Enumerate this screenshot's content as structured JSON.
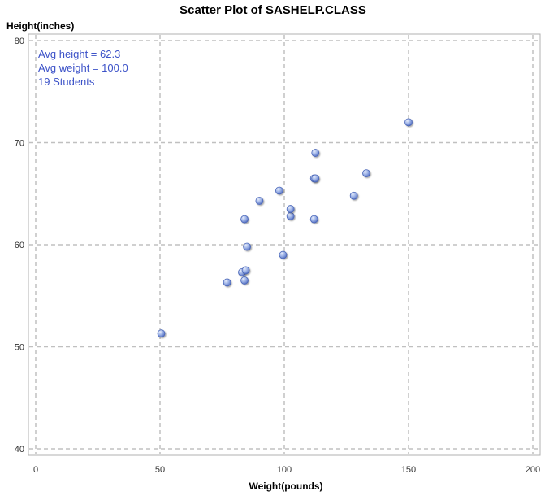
{
  "chart_data": {
    "type": "scatter",
    "title": "Scatter Plot of SASHELP.CLASS",
    "xlabel": "Weight(pounds)",
    "ylabel": "Height(inches)",
    "xlim": [
      0,
      200
    ],
    "ylim": [
      40,
      80
    ],
    "xticks": [
      "0",
      "50",
      "100",
      "150",
      "200"
    ],
    "yticks": [
      "40",
      "50",
      "60",
      "70",
      "80"
    ],
    "grid": true,
    "annotations": [
      "Avg height = 62.3",
      "Avg weight = 100.0",
      "19 Students"
    ],
    "series": [
      {
        "points": [
          {
            "x": 50.5,
            "y": 51.3
          },
          {
            "x": 77.0,
            "y": 56.3
          },
          {
            "x": 83.0,
            "y": 57.3
          },
          {
            "x": 84.0,
            "y": 56.5
          },
          {
            "x": 84.5,
            "y": 57.5
          },
          {
            "x": 84.0,
            "y": 62.5
          },
          {
            "x": 85.0,
            "y": 59.8
          },
          {
            "x": 90.0,
            "y": 64.3
          },
          {
            "x": 98.0,
            "y": 65.3
          },
          {
            "x": 99.5,
            "y": 59.0
          },
          {
            "x": 102.5,
            "y": 62.8
          },
          {
            "x": 102.5,
            "y": 63.5
          },
          {
            "x": 112.0,
            "y": 62.5
          },
          {
            "x": 112.0,
            "y": 66.5
          },
          {
            "x": 112.5,
            "y": 66.5
          },
          {
            "x": 112.5,
            "y": 69.0
          },
          {
            "x": 128.0,
            "y": 64.8
          },
          {
            "x": 133.0,
            "y": 67.0
          },
          {
            "x": 150.0,
            "y": 72.0
          }
        ]
      }
    ]
  },
  "style": {
    "marker_fill": "#8fa8e0",
    "marker_stroke": "#4a66b8",
    "grid_color": "#c0c0c0",
    "frame_color": "#b0b0b0",
    "annotation_color": "#3c52c8"
  }
}
